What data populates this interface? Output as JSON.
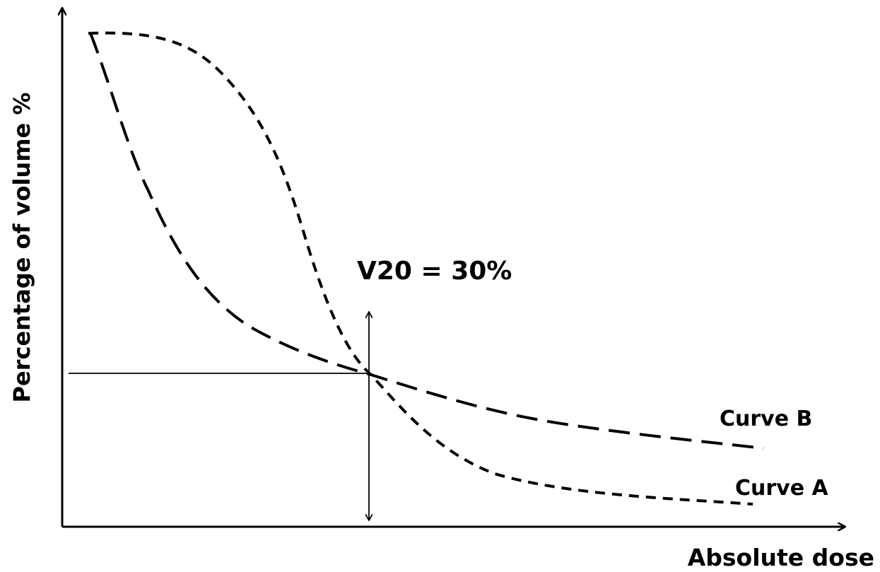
{
  "y_axis_label": "Percentage of volume %",
  "x_axis_label": "Absolute dose",
  "annotation": "V20 = 30%",
  "curves": [
    {
      "label": "Curve B"
    },
    {
      "label": "Curve A"
    }
  ]
}
